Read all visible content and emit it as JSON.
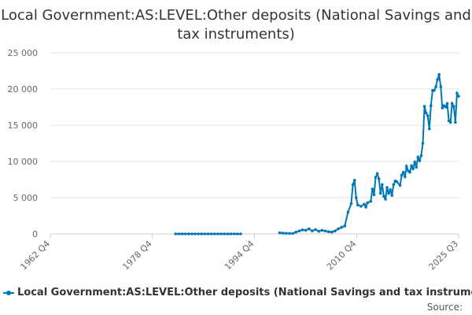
{
  "chart_data": {
    "type": "line",
    "title": "Local Government:AS:LEVEL:Other deposits (National Savings and tax instruments)",
    "xlabel": "",
    "ylabel": "",
    "x_ticks": [
      "1962 Q4",
      "1978 Q4",
      "1994 Q4",
      "2010 Q4",
      "2025 Q3"
    ],
    "y_ticks": [
      "0",
      "5 000",
      "10 000",
      "15 000",
      "20 000",
      "25 000"
    ],
    "ylim": [
      0,
      25000
    ],
    "xlim": [
      1962.75,
      2025.5
    ],
    "grid": "horizontal",
    "legend_position": "bottom",
    "color": "#0077b6",
    "series": [
      {
        "name": "Local Government:AS:LEVEL:Other deposits (National Savings and tax instruments)",
        "points": [
          [
            1982.0,
            0
          ],
          [
            1982.5,
            0
          ],
          [
            1983.0,
            0
          ],
          [
            1983.5,
            0
          ],
          [
            1984.0,
            0
          ],
          [
            1984.5,
            0
          ],
          [
            1985.0,
            0
          ],
          [
            1985.5,
            0
          ],
          [
            1986.0,
            0
          ],
          [
            1986.5,
            0
          ],
          [
            1987.0,
            0
          ],
          [
            1987.5,
            0
          ],
          [
            1988.0,
            0
          ],
          [
            1988.5,
            0
          ],
          [
            1989.0,
            0
          ],
          [
            1989.5,
            0
          ],
          [
            1990.0,
            0
          ],
          [
            1990.5,
            0
          ],
          [
            1991.0,
            0
          ],
          [
            1991.5,
            0
          ],
          [
            1992.0,
            0
          ],
          [
            1998.0,
            150
          ],
          [
            1998.5,
            100
          ],
          [
            1999.0,
            80
          ],
          [
            1999.5,
            60
          ],
          [
            2000.0,
            50
          ],
          [
            2000.5,
            250
          ],
          [
            2001.0,
            400
          ],
          [
            2001.5,
            550
          ],
          [
            2002.0,
            500
          ],
          [
            2002.5,
            700
          ],
          [
            2003.0,
            400
          ],
          [
            2003.5,
            600
          ],
          [
            2004.0,
            350
          ],
          [
            2004.5,
            500
          ],
          [
            2005.0,
            400
          ],
          [
            2005.5,
            300
          ],
          [
            2006.0,
            250
          ],
          [
            2006.5,
            400
          ],
          [
            2007.0,
            700
          ],
          [
            2007.5,
            900
          ],
          [
            2008.0,
            1100
          ],
          [
            2008.5,
            3000
          ],
          [
            2009.0,
            4200
          ],
          [
            2009.25,
            6800
          ],
          [
            2009.5,
            7400
          ],
          [
            2009.75,
            5000
          ],
          [
            2010.0,
            4000
          ],
          [
            2010.5,
            3800
          ],
          [
            2011.0,
            4100
          ],
          [
            2011.25,
            3700
          ],
          [
            2011.5,
            4300
          ],
          [
            2012.0,
            4500
          ],
          [
            2012.25,
            6200
          ],
          [
            2012.5,
            5400
          ],
          [
            2012.75,
            7800
          ],
          [
            2013.0,
            8300
          ],
          [
            2013.25,
            7600
          ],
          [
            2013.5,
            5600
          ],
          [
            2013.75,
            6800
          ],
          [
            2014.0,
            5200
          ],
          [
            2014.25,
            4800
          ],
          [
            2014.5,
            6400
          ],
          [
            2014.75,
            5600
          ],
          [
            2015.0,
            6100
          ],
          [
            2015.25,
            5300
          ],
          [
            2015.5,
            6800
          ],
          [
            2015.75,
            7300
          ],
          [
            2016.0,
            7200
          ],
          [
            2016.5,
            6700
          ],
          [
            2016.75,
            8100
          ],
          [
            2017.0,
            8500
          ],
          [
            2017.25,
            7900
          ],
          [
            2017.5,
            9300
          ],
          [
            2017.75,
            8700
          ],
          [
            2018.0,
            8500
          ],
          [
            2018.25,
            9400
          ],
          [
            2018.5,
            9000
          ],
          [
            2018.75,
            9900
          ],
          [
            2019.0,
            9200
          ],
          [
            2019.25,
            10600
          ],
          [
            2019.5,
            10100
          ],
          [
            2019.75,
            10800
          ],
          [
            2020.0,
            12500
          ],
          [
            2020.25,
            17600
          ],
          [
            2020.5,
            16700
          ],
          [
            2020.75,
            16300
          ],
          [
            2021.0,
            14500
          ],
          [
            2021.25,
            17700
          ],
          [
            2021.5,
            19800
          ],
          [
            2021.75,
            19800
          ],
          [
            2022.0,
            20300
          ],
          [
            2022.25,
            21300
          ],
          [
            2022.5,
            22000
          ],
          [
            2022.75,
            20300
          ],
          [
            2023.0,
            17400
          ],
          [
            2023.25,
            17700
          ],
          [
            2023.5,
            17500
          ],
          [
            2023.75,
            18000
          ],
          [
            2024.0,
            15600
          ],
          [
            2024.25,
            15400
          ],
          [
            2024.5,
            18000
          ],
          [
            2024.75,
            17600
          ],
          [
            2025.0,
            15400
          ],
          [
            2025.25,
            19400
          ],
          [
            2025.5,
            19000
          ]
        ]
      }
    ]
  },
  "source_label": "Source:"
}
